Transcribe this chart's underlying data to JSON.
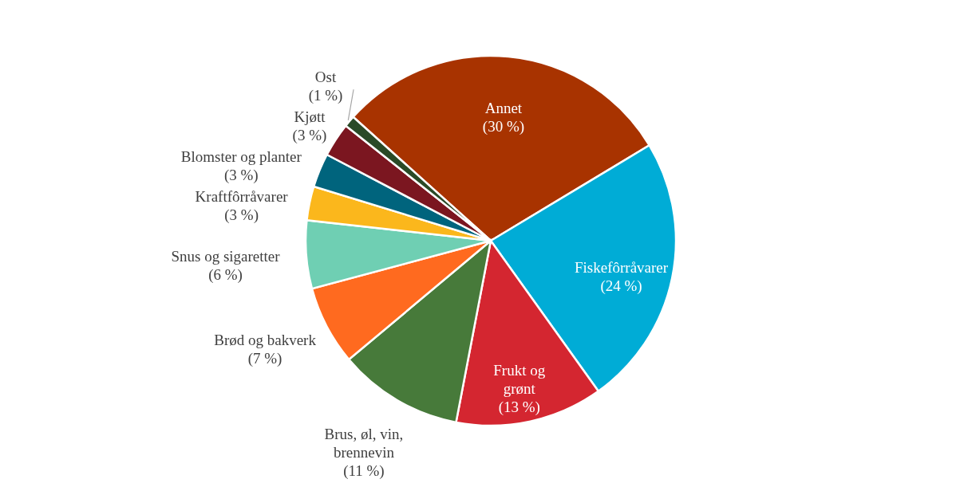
{
  "chart_data": {
    "type": "pie",
    "categories": [
      "Annet",
      "Fiskefôrråvarer",
      "Frukt og grønt",
      "Brus, øl, vin, brennevin",
      "Brød og bakverk",
      "Snus og sigaretter",
      "Kraftfôrråvarer",
      "Blomster og planter",
      "Kjøtt",
      "Ost"
    ],
    "values": [
      30,
      24,
      13,
      11,
      7,
      6,
      3,
      3,
      3,
      1
    ],
    "colors": [
      "#a83300",
      "#00acd6",
      "#d42630",
      "#477a3a",
      "#ff6a1f",
      "#6fcfb3",
      "#fbb71c",
      "#00647d",
      "#7b1620",
      "#2a4a27"
    ],
    "value_labels": [
      "(30 %)",
      "(24 %)",
      "(13 %)",
      "(11 %)",
      "(7 %)",
      "(6 %)",
      "(3 %)",
      "(3 %)",
      "(3 %)",
      "(1 %)"
    ]
  }
}
